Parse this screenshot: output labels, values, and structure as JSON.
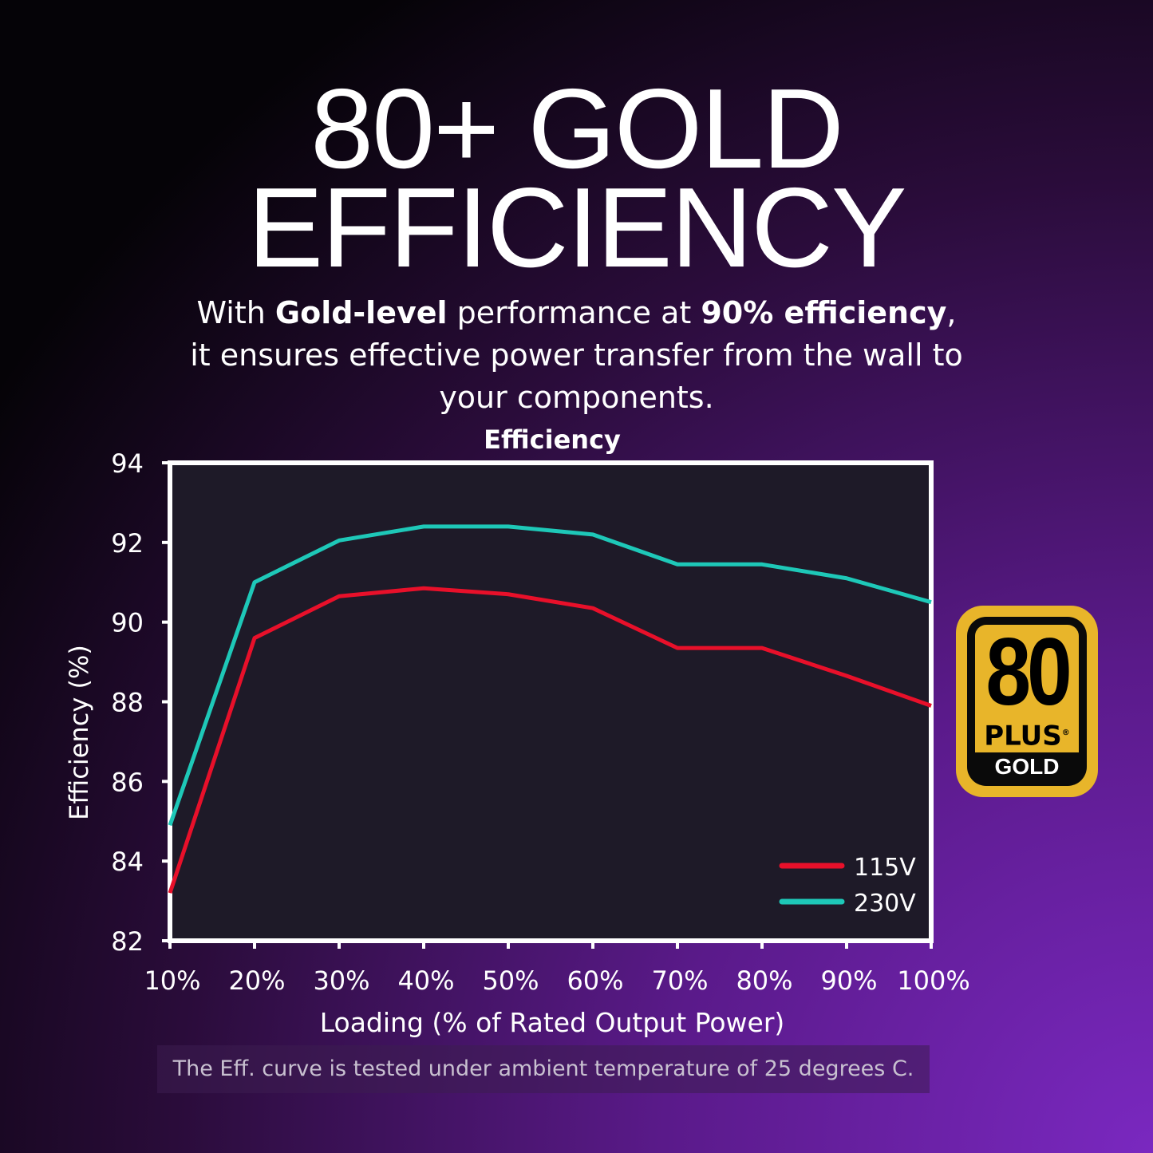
{
  "headline": {
    "line1": "80+ GOLD",
    "line2": "EFFICIENCY"
  },
  "subtitle": {
    "p1": "With ",
    "b1": "Gold-level",
    "p2": " performance at ",
    "b2": "90% efficiency",
    "p3": ",",
    "line2": "it ensures effective power transfer from the wall to",
    "line3": "your components."
  },
  "note": "The Eff. curve is tested under ambient temperature of 25 degrees C.",
  "badge": {
    "number": "80",
    "plus": "PLUS",
    "reg": "®",
    "tier": "GOLD",
    "color": "#e8b52a"
  },
  "chart_data": {
    "type": "line",
    "title": "Efficiency",
    "xlabel": "Loading (% of Rated Output Power)",
    "ylabel": "Efficiency (%)",
    "categories": [
      "10%",
      "20%",
      "30%",
      "40%",
      "50%",
      "60%",
      "70%",
      "80%",
      "90%",
      "100%"
    ],
    "x": [
      10,
      20,
      30,
      40,
      50,
      60,
      70,
      80,
      90,
      100
    ],
    "ylim": [
      82,
      94
    ],
    "yticks": [
      82,
      84,
      86,
      88,
      90,
      92,
      94
    ],
    "grid": false,
    "legend": "bottom-right",
    "series": [
      {
        "name": "115V",
        "color": "#e8102a",
        "values": [
          83.2,
          89.6,
          90.65,
          90.85,
          90.7,
          90.35,
          89.35,
          89.35,
          88.65,
          87.9
        ]
      },
      {
        "name": "230V",
        "color": "#1ec8b8",
        "values": [
          84.9,
          91.0,
          92.05,
          92.4,
          92.4,
          92.2,
          91.45,
          91.45,
          91.1,
          90.5
        ]
      }
    ]
  }
}
